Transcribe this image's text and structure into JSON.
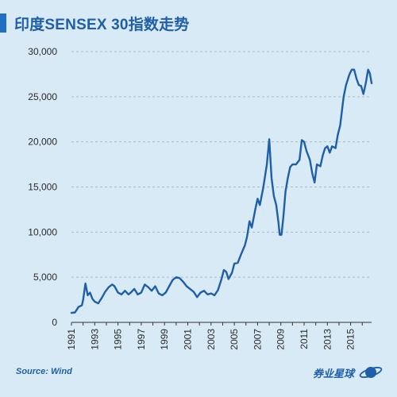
{
  "header": {
    "title": "印度SENSEX 30指数走势"
  },
  "footer": {
    "source": "Source: Wind",
    "brand": "券业星球"
  },
  "colors": {
    "line": "#1f5ea8",
    "accent": "#1f6fc4",
    "background": "#d9eaf7",
    "grid": "#aab9c6"
  },
  "chart_data": {
    "type": "line",
    "title": "印度SENSEX 30指数走势",
    "xlabel": "",
    "ylabel": "",
    "xlim": [
      1991,
      2016.8
    ],
    "ylim": [
      0,
      30000
    ],
    "yticks": [
      0,
      5000,
      10000,
      15000,
      20000,
      25000,
      30000
    ],
    "ytick_labels": [
      "0",
      "5,000",
      "10,000",
      "15,000",
      "20,000",
      "25,000",
      "30,000"
    ],
    "xticks": [
      1991,
      1993,
      1995,
      1997,
      1999,
      2001,
      2003,
      2005,
      2007,
      2009,
      2011,
      2013,
      2015
    ],
    "xtick_labels": [
      "1991",
      "1993",
      "1995",
      "1997",
      "1999",
      "2001",
      "2003",
      "2005",
      "2007",
      "2009",
      "2011",
      "2013",
      "2015"
    ],
    "grid": true,
    "legend": "none",
    "series": [
      {
        "points": [
          [
            1991.0,
            1050
          ],
          [
            1991.3,
            1100
          ],
          [
            1991.6,
            1700
          ],
          [
            1991.9,
            1900
          ],
          [
            1992.0,
            2500
          ],
          [
            1992.2,
            4300
          ],
          [
            1992.4,
            3000
          ],
          [
            1992.6,
            3300
          ],
          [
            1992.8,
            2600
          ],
          [
            1993.0,
            2300
          ],
          [
            1993.3,
            2100
          ],
          [
            1993.6,
            2700
          ],
          [
            1993.9,
            3400
          ],
          [
            1994.2,
            3900
          ],
          [
            1994.5,
            4200
          ],
          [
            1994.7,
            4000
          ],
          [
            1995.0,
            3300
          ],
          [
            1995.3,
            3100
          ],
          [
            1995.6,
            3500
          ],
          [
            1995.9,
            3100
          ],
          [
            1996.1,
            3300
          ],
          [
            1996.4,
            3700
          ],
          [
            1996.7,
            3100
          ],
          [
            1997.0,
            3300
          ],
          [
            1997.3,
            4200
          ],
          [
            1997.6,
            3900
          ],
          [
            1997.9,
            3500
          ],
          [
            1998.2,
            4000
          ],
          [
            1998.5,
            3200
          ],
          [
            1998.8,
            3000
          ],
          [
            1999.1,
            3300
          ],
          [
            1999.4,
            4000
          ],
          [
            1999.7,
            4700
          ],
          [
            2000.0,
            5000
          ],
          [
            2000.3,
            4900
          ],
          [
            2000.6,
            4500
          ],
          [
            2000.9,
            4000
          ],
          [
            2001.2,
            3700
          ],
          [
            2001.5,
            3400
          ],
          [
            2001.8,
            2800
          ],
          [
            2002.1,
            3300
          ],
          [
            2002.4,
            3500
          ],
          [
            2002.7,
            3100
          ],
          [
            2003.0,
            3200
          ],
          [
            2003.3,
            3000
          ],
          [
            2003.6,
            3600
          ],
          [
            2003.9,
            4800
          ],
          [
            2004.1,
            5800
          ],
          [
            2004.3,
            5600
          ],
          [
            2004.5,
            4800
          ],
          [
            2004.8,
            5500
          ],
          [
            2005.0,
            6500
          ],
          [
            2005.3,
            6600
          ],
          [
            2005.6,
            7600
          ],
          [
            2005.9,
            8500
          ],
          [
            2006.1,
            9500
          ],
          [
            2006.3,
            11200
          ],
          [
            2006.5,
            10500
          ],
          [
            2006.8,
            12500
          ],
          [
            2007.0,
            13700
          ],
          [
            2007.2,
            13000
          ],
          [
            2007.5,
            15000
          ],
          [
            2007.8,
            17500
          ],
          [
            2008.0,
            20300
          ],
          [
            2008.2,
            16000
          ],
          [
            2008.4,
            14000
          ],
          [
            2008.6,
            13000
          ],
          [
            2008.8,
            11000
          ],
          [
            2008.9,
            9700
          ],
          [
            2009.05,
            9700
          ],
          [
            2009.2,
            11500
          ],
          [
            2009.4,
            14500
          ],
          [
            2009.6,
            16000
          ],
          [
            2009.8,
            17200
          ],
          [
            2010.0,
            17500
          ],
          [
            2010.3,
            17500
          ],
          [
            2010.6,
            18000
          ],
          [
            2010.8,
            20200
          ],
          [
            2011.0,
            20000
          ],
          [
            2011.2,
            19000
          ],
          [
            2011.5,
            18000
          ],
          [
            2011.7,
            16500
          ],
          [
            2011.9,
            15500
          ],
          [
            2012.1,
            17500
          ],
          [
            2012.4,
            17300
          ],
          [
            2012.6,
            18500
          ],
          [
            2012.8,
            19300
          ],
          [
            2013.0,
            19500
          ],
          [
            2013.2,
            18800
          ],
          [
            2013.4,
            19500
          ],
          [
            2013.7,
            19300
          ],
          [
            2013.9,
            20800
          ],
          [
            2014.1,
            21800
          ],
          [
            2014.4,
            25000
          ],
          [
            2014.6,
            26300
          ],
          [
            2014.9,
            27500
          ],
          [
            2015.1,
            28000
          ],
          [
            2015.3,
            28000
          ],
          [
            2015.5,
            27000
          ],
          [
            2015.7,
            26300
          ],
          [
            2015.9,
            26200
          ],
          [
            2016.1,
            25300
          ],
          [
            2016.3,
            26500
          ],
          [
            2016.5,
            28000
          ],
          [
            2016.65,
            27600
          ],
          [
            2016.8,
            26500
          ]
        ]
      }
    ]
  }
}
